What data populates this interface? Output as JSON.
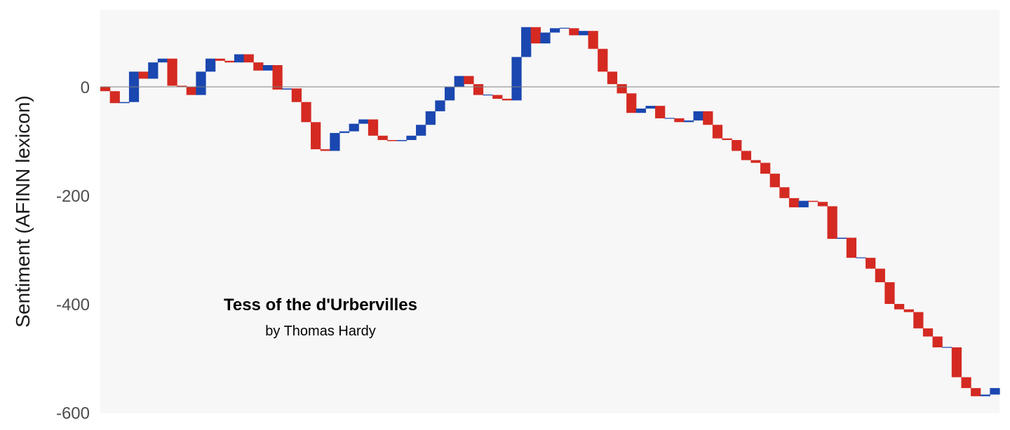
{
  "chart_data": {
    "type": "waterfall",
    "ylabel": "Sentiment (AFINN lexicon)",
    "ylim": [
      -600,
      140
    ],
    "yticks": [
      0,
      -200,
      -400,
      -600
    ],
    "ytick_labels": [
      "0",
      "-200",
      "-400",
      "-600"
    ],
    "zero_line": true,
    "background": "#f7f7f7",
    "colors": {
      "increase": "#1a47b0",
      "decrease": "#d42a22",
      "zero_line": "#7f7f7f"
    },
    "annotation": {
      "title": "Tess of the d'Urbervilles",
      "subtitle": "by Thomas Hardy"
    },
    "cumulative": [
      -8,
      -30,
      -28,
      28,
      15,
      45,
      52,
      2,
      0,
      -15,
      28,
      52,
      48,
      45,
      60,
      45,
      30,
      40,
      -5,
      -3,
      -28,
      -65,
      -115,
      -118,
      -85,
      -82,
      -68,
      -60,
      -90,
      -98,
      -100,
      -98,
      -90,
      -70,
      -45,
      -25,
      0,
      20,
      5,
      -15,
      -15,
      -22,
      -25,
      55,
      110,
      80,
      100,
      108,
      108,
      95,
      103,
      70,
      28,
      5,
      -12,
      -48,
      -40,
      -35,
      -58,
      -58,
      -65,
      -62,
      -45,
      -70,
      -95,
      -98,
      -118,
      -135,
      -140,
      -160,
      -185,
      -205,
      -222,
      -210,
      -212,
      -220,
      -280,
      -278,
      -315,
      -315,
      -335,
      -360,
      -400,
      -410,
      -415,
      -445,
      -460,
      -480,
      -480,
      -535,
      -555,
      -570,
      -567,
      -555
    ]
  }
}
